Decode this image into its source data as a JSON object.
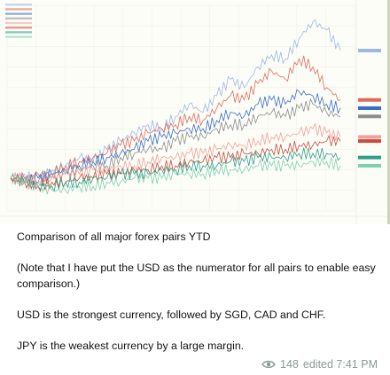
{
  "message": {
    "caption_lines": [
      "Comparison of all major forex pairs YTD",
      "(Note that I have put the USD as the numerator for all pairs to enable easy comparison.)",
      "USD is the strongest currency, followed by SGD, CAD and CHF.",
      "JPY is the weakest currency by a large margin."
    ],
    "views": "148",
    "status": "edited 7:41 PM",
    "views_icon": "eye-icon"
  },
  "chart_data": {
    "type": "line",
    "title": "",
    "xlabel": "",
    "ylabel": "",
    "grid": true,
    "legend": "top-left",
    "x": [
      0,
      1,
      2,
      3,
      4,
      5,
      6,
      7,
      8,
      9,
      10,
      11,
      12,
      13,
      14,
      15,
      16,
      17,
      18,
      19,
      20,
      21,
      22,
      23,
      24
    ],
    "series": [
      {
        "color": "#9bb7e6",
        "values": [
          0,
          1,
          -1,
          2,
          3,
          5,
          4,
          7,
          9,
          11,
          13,
          12,
          15,
          18,
          16,
          20,
          24,
          22,
          27,
          30,
          29,
          34,
          38,
          36,
          31
        ]
      },
      {
        "color": "#e06a5a",
        "values": [
          0,
          0,
          1,
          1,
          3,
          4,
          5,
          6,
          8,
          9,
          11,
          12,
          13,
          15,
          14,
          17,
          20,
          19,
          23,
          26,
          24,
          29,
          27,
          22,
          19
        ]
      },
      {
        "color": "#3a6fc7",
        "values": [
          0,
          -1,
          0,
          1,
          2,
          3,
          4,
          5,
          6,
          7,
          9,
          10,
          11,
          12,
          12,
          14,
          16,
          15,
          18,
          19,
          18,
          21,
          20,
          18,
          17
        ]
      },
      {
        "color": "#8c8c8c",
        "values": [
          0,
          -1,
          -1,
          0,
          1,
          2,
          3,
          3,
          5,
          6,
          7,
          7,
          9,
          10,
          10,
          12,
          13,
          13,
          15,
          16,
          15,
          17,
          18,
          16,
          15
        ]
      },
      {
        "color": "#f2a09a",
        "values": [
          0,
          0,
          -1,
          0,
          1,
          1,
          2,
          2,
          3,
          3,
          4,
          5,
          5,
          6,
          6,
          7,
          8,
          8,
          9,
          10,
          10,
          11,
          12,
          11,
          10
        ]
      },
      {
        "color": "#c94b3c",
        "values": [
          0,
          -1,
          -2,
          -1,
          -1,
          0,
          0,
          1,
          1,
          2,
          2,
          3,
          3,
          4,
          4,
          5,
          5,
          6,
          6,
          7,
          7,
          8,
          8,
          9,
          9
        ]
      },
      {
        "color": "#2e9e8a",
        "values": [
          0,
          -1,
          -2,
          -2,
          -1,
          -1,
          0,
          0,
          1,
          1,
          1,
          2,
          2,
          3,
          3,
          3,
          4,
          4,
          5,
          5,
          5,
          6,
          6,
          6,
          5
        ]
      },
      {
        "color": "#7fd0b0",
        "values": [
          0,
          -1,
          -2,
          -3,
          -3,
          -2,
          -2,
          -1,
          -1,
          0,
          0,
          0,
          1,
          1,
          1,
          2,
          2,
          2,
          3,
          3,
          3,
          3,
          4,
          4,
          3
        ]
      }
    ],
    "ylim": [
      -8,
      42
    ]
  }
}
